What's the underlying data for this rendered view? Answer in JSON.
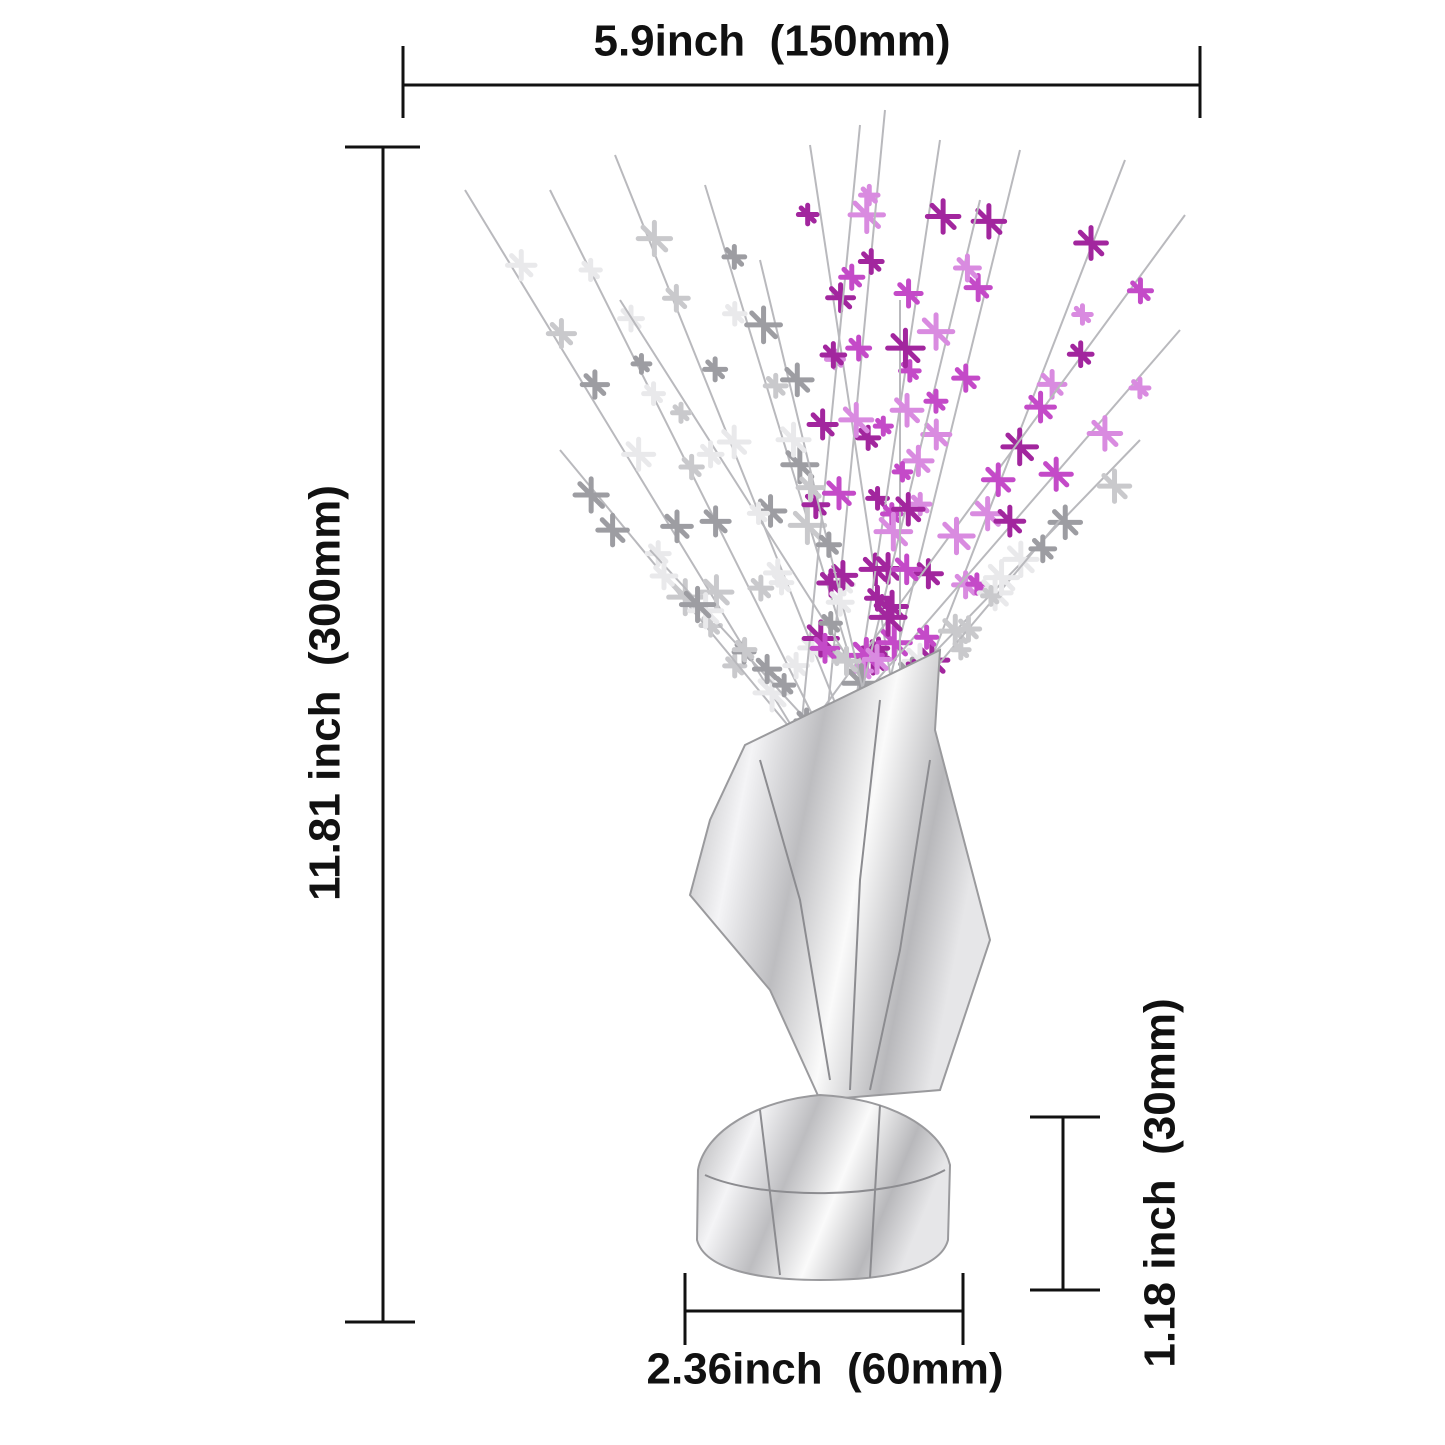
{
  "dimensions": {
    "width": {
      "label": "5.9inch  (150mm)"
    },
    "height": {
      "label": "11.81 inch  (300mm)"
    },
    "base_width": {
      "label": "2.36inch  (60mm)"
    },
    "base_height": {
      "label": "1.18 inch  (30mm)"
    }
  }
}
